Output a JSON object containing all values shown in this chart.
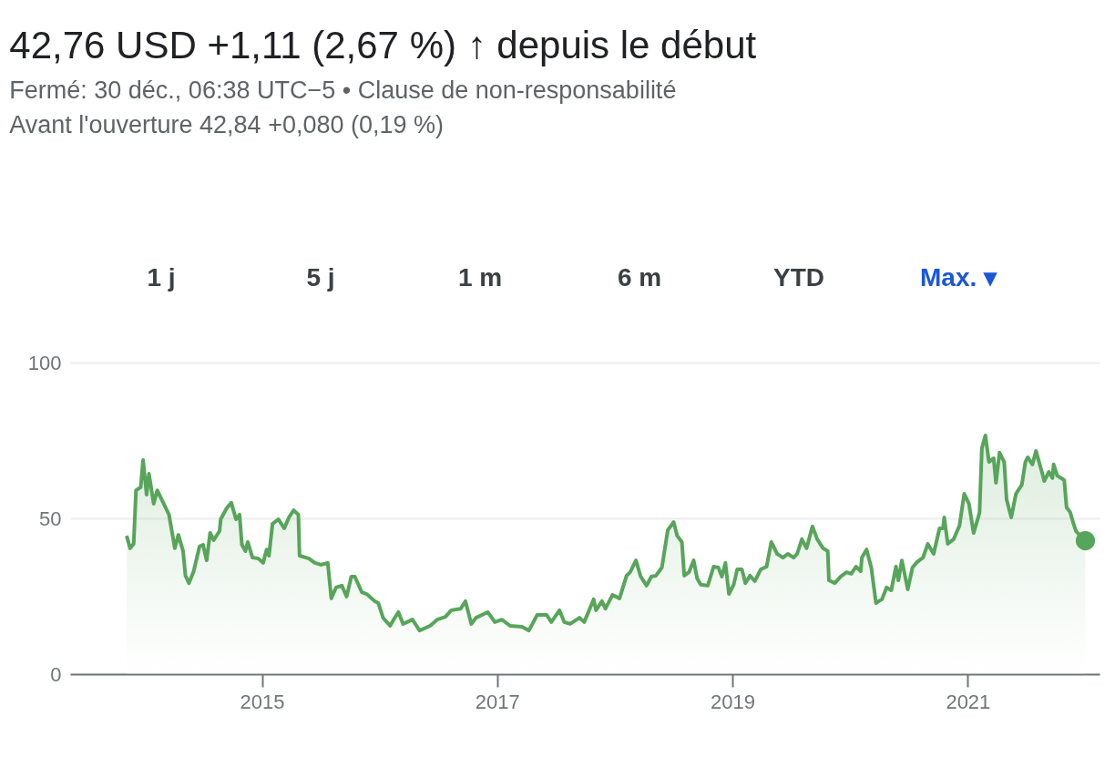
{
  "chart_data": {
    "type": "area",
    "title": "42,76 USD +1,11 (2,67 %) ↑ depuis le début",
    "subtitle": [
      "Fermé: 30 déc., 06:38 UTC−5 • Clause de non-responsabilité",
      "Avant l'ouverture 42,84 +0,080 (0,19 %)"
    ],
    "annotations": [
      "1 j",
      "5 j",
      "1 m",
      "6 m",
      "YTD",
      "Max. ▾"
    ],
    "series": [
      {
        "color": "#57a55a",
        "x": [
          2013.85,
          2013.88,
          2013.91,
          2013.93,
          2013.97,
          2013.99,
          2014.02,
          2014.04,
          2014.08,
          2014.11,
          2014.21,
          2014.26,
          2014.29,
          2014.33,
          2014.35,
          2014.38,
          2014.42,
          2014.47,
          2014.5,
          2014.53,
          2014.56,
          2014.59,
          2014.64,
          2014.65,
          2014.7,
          2014.74,
          2014.78,
          2014.81,
          2014.83,
          2014.86,
          2014.88,
          2014.92,
          2014.97,
          2015.01,
          2015.04,
          2015.06,
          2015.09,
          2015.14,
          2015.19,
          2015.23,
          2015.27,
          2015.31,
          2015.32,
          2015.4,
          2015.45,
          2015.5,
          2015.56,
          2015.59,
          2015.63,
          2015.68,
          2015.72,
          2015.76,
          2015.79,
          2015.85,
          2015.89,
          2015.96,
          2015.99,
          2016.03,
          2016.09,
          2016.12,
          2016.16,
          2016.2,
          2016.28,
          2016.34,
          2016.43,
          2016.49,
          2016.56,
          2016.61,
          2016.69,
          2016.73,
          2016.78,
          2016.82,
          2016.92,
          2016.98,
          2017.04,
          2017.11,
          2017.21,
          2017.27,
          2017.34,
          2017.42,
          2017.46,
          2017.53,
          2017.57,
          2017.62,
          2017.7,
          2017.74,
          2017.82,
          2017.84,
          2017.89,
          2017.92,
          2017.98,
          2018.04,
          2018.1,
          2018.13,
          2018.18,
          2018.22,
          2018.27,
          2018.31,
          2018.35,
          2018.4,
          2018.45,
          2018.5,
          2018.53,
          2018.57,
          2018.59,
          2018.63,
          2018.67,
          2018.7,
          2018.73,
          2018.79,
          2018.84,
          2018.88,
          2018.91,
          2018.94,
          2018.97,
          2019.01,
          2019.04,
          2019.08,
          2019.11,
          2019.15,
          2019.19,
          2019.24,
          2019.29,
          2019.33,
          2019.38,
          2019.43,
          2019.47,
          2019.52,
          2019.55,
          2019.59,
          2019.63,
          2019.68,
          2019.72,
          2019.77,
          2019.81,
          2019.82,
          2019.87,
          2019.92,
          2019.97,
          2020.01,
          2020.05,
          2020.09,
          2020.1,
          2020.14,
          2020.18,
          2020.22,
          2020.27,
          2020.31,
          2020.35,
          2020.39,
          2020.41,
          2020.44,
          2020.49,
          2020.53,
          2020.57,
          2020.62,
          2020.66,
          2020.71,
          2020.76,
          2020.79,
          2020.8,
          2020.83,
          2020.88,
          2020.93,
          2020.97,
          2021.01,
          2021.05,
          2021.1,
          2021.12,
          2021.15,
          2021.18,
          2021.22,
          2021.24,
          2021.27,
          2021.31,
          2021.33,
          2021.37,
          2021.41,
          2021.46,
          2021.49,
          2021.51,
          2021.55,
          2021.58,
          2021.63,
          2021.65,
          2021.69,
          2021.72,
          2021.73,
          2021.76,
          2021.82,
          2021.84,
          2021.87,
          2021.9,
          2021.92,
          2022.0
        ],
        "values": [
          44.4,
          40.4,
          41.8,
          59.0,
          60.0,
          68.7,
          57.6,
          64.3,
          54.7,
          59.0,
          51.2,
          40.4,
          44.7,
          39.5,
          31.6,
          29.2,
          33.0,
          41.0,
          41.5,
          36.5,
          45.3,
          43.0,
          45.9,
          49.7,
          53.2,
          55.0,
          49.7,
          51.2,
          41.5,
          39.5,
          42.4,
          37.4,
          37.1,
          35.7,
          40.0,
          38.0,
          48.2,
          49.7,
          46.8,
          50.3,
          52.6,
          51.2,
          38.0,
          37.1,
          35.7,
          35.1,
          35.7,
          24.3,
          27.8,
          28.4,
          24.9,
          31.3,
          31.3,
          26.3,
          25.7,
          23.4,
          22.8,
          18.1,
          15.5,
          17.5,
          19.9,
          16.1,
          17.5,
          14.0,
          15.5,
          17.5,
          18.4,
          20.5,
          21.0,
          23.4,
          16.1,
          18.1,
          19.9,
          16.7,
          17.5,
          15.5,
          15.2,
          14.0,
          19.0,
          19.0,
          16.7,
          20.5,
          16.7,
          16.1,
          18.1,
          16.7,
          24.0,
          20.5,
          23.4,
          21.0,
          25.4,
          24.3,
          31.6,
          32.7,
          36.5,
          31.3,
          28.4,
          31.3,
          31.6,
          34.2,
          46.2,
          48.8,
          44.4,
          42.4,
          31.6,
          32.7,
          36.5,
          30.7,
          28.7,
          28.4,
          34.5,
          34.2,
          31.3,
          35.7,
          25.7,
          28.7,
          33.6,
          33.6,
          29.2,
          31.6,
          29.8,
          33.6,
          34.5,
          42.4,
          38.6,
          37.4,
          38.6,
          37.4,
          38.6,
          43.3,
          40.4,
          47.4,
          43.3,
          40.4,
          39.5,
          30.1,
          29.2,
          31.3,
          32.7,
          32.2,
          34.5,
          33.0,
          37.4,
          40.0,
          34.2,
          22.8,
          24.0,
          27.8,
          26.9,
          34.5,
          30.1,
          36.5,
          27.2,
          34.2,
          36.0,
          37.4,
          41.8,
          38.6,
          46.8,
          46.8,
          50.3,
          41.8,
          43.3,
          47.7,
          57.9,
          54.7,
          45.3,
          51.8,
          72.5,
          76.6,
          68.1,
          69.3,
          61.4,
          71.1,
          68.1,
          56.1,
          50.3,
          57.9,
          60.8,
          68.1,
          69.6,
          67.3,
          71.6,
          64.9,
          62.0,
          64.9,
          62.9,
          67.3,
          63.7,
          62.3,
          53.5,
          52.0,
          48.2,
          45.9,
          42.8
        ]
      },
      {
        "type": "scatter",
        "marker": "circle",
        "color": "#57a55a",
        "x": [
          2022.0
        ],
        "values": [
          42.8
        ]
      }
    ],
    "xlim": [
      2013.37,
      2022.12
    ],
    "xticks": [
      2015,
      2017,
      2019,
      2021
    ],
    "ylim": [
      0,
      100
    ],
    "yticks": [
      0,
      50,
      100
    ],
    "grid": "y",
    "marker": "none"
  }
}
